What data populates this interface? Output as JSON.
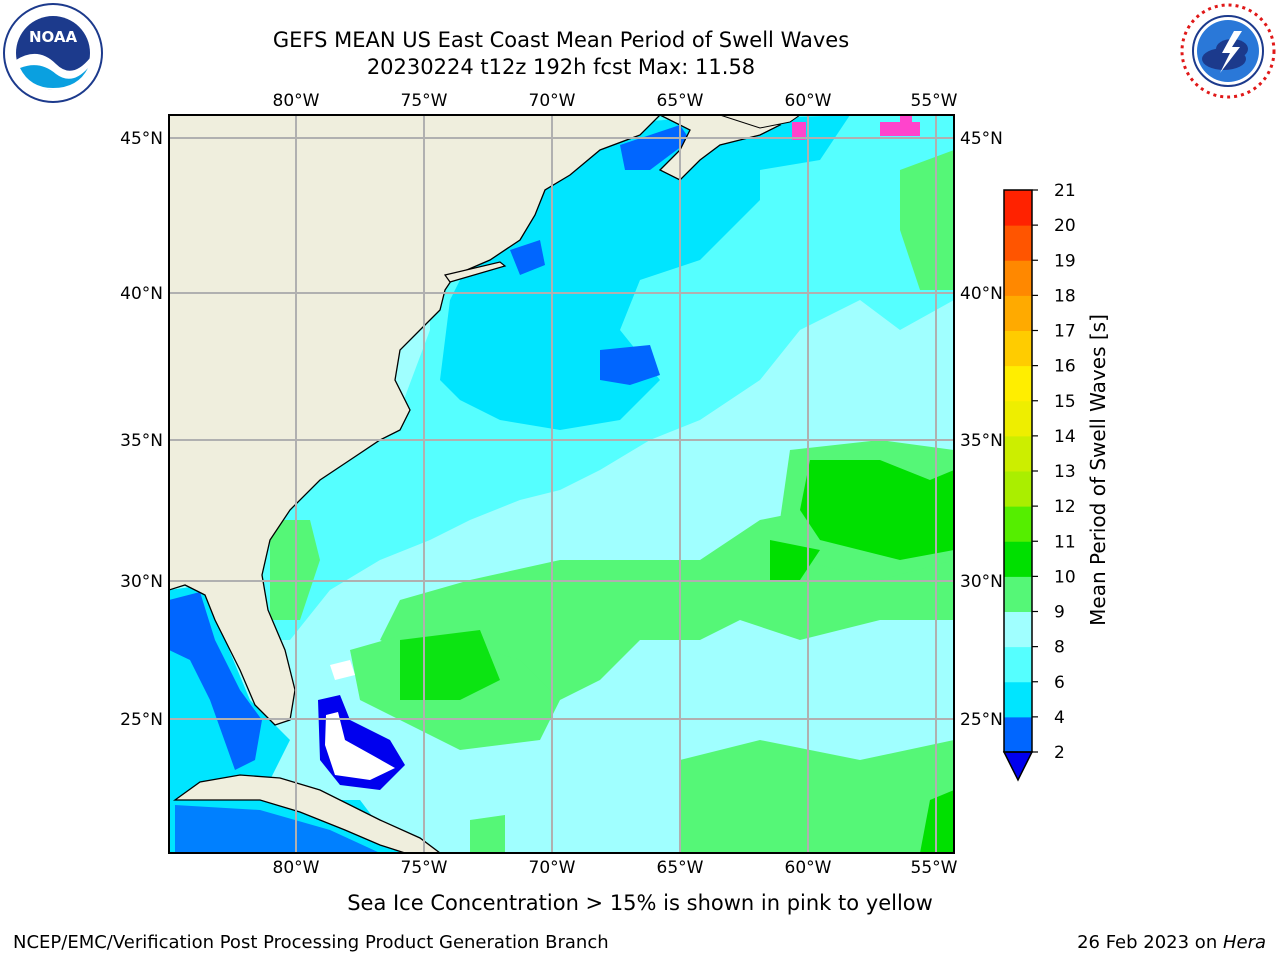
{
  "header": {
    "title_line1": "GEFS MEAN US East Coast Mean Period of Swell Waves",
    "title_line2": "20230224 t12z 192h fcst   Max: 11.58"
  },
  "logos": {
    "left": {
      "icon": "noaa-logo-icon",
      "text": "NOAA"
    },
    "right": {
      "icon": "national-weather-service-logo-icon",
      "text": "NATIONAL WEATHER SERVICE"
    }
  },
  "map": {
    "lon_labels": [
      "80°W",
      "75°W",
      "70°W",
      "65°W",
      "60°W",
      "55°W"
    ],
    "lat_labels": [
      "45°N",
      "40°N",
      "35°N",
      "30°N",
      "25°N"
    ],
    "colors": {
      "land": "#efeedd",
      "coastline": "#000000",
      "gridline": "#b0b0b0"
    }
  },
  "colorbar": {
    "label": "Mean Period of Swell Waves [s]",
    "ticks": [
      "2",
      "4",
      "6",
      "8",
      "9",
      "10",
      "11",
      "12",
      "13",
      "14",
      "15",
      "16",
      "17",
      "18",
      "19",
      "20",
      "21"
    ],
    "colors": [
      "#0066ff",
      "#00e5ff",
      "#55ffff",
      "#a0ffff",
      "#55f777",
      "#00e000",
      "#55ee00",
      "#aaee00",
      "#ccee00",
      "#eeee00",
      "#ffee00",
      "#ffcc00",
      "#ffaa00",
      "#ff8800",
      "#ff5500",
      "#ff2200",
      "#ff0000"
    ],
    "under_color": "#0000ee"
  },
  "note": "Sea Ice Concentration > 15% is shown in pink to yellow",
  "footer": {
    "left": "NCEP/EMC/Verification Post Processing Product Generation Branch",
    "date": "26 Feb 2023 on ",
    "machine": "Hera"
  }
}
